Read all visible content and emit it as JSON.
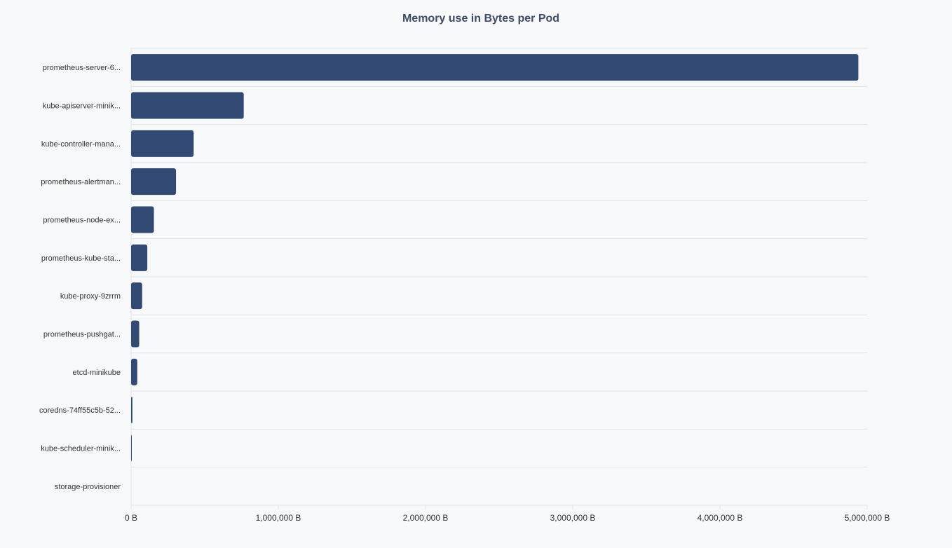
{
  "chart_data": {
    "type": "bar",
    "orientation": "horizontal",
    "title": "Memory use in Bytes per Pod",
    "xlabel": "",
    "ylabel": "",
    "categories": [
      "prometheus-server-6...",
      "kube-apiserver-minik...",
      "kube-controller-mana...",
      "prometheus-alertman...",
      "prometheus-node-ex...",
      "prometheus-kube-sta...",
      "kube-proxy-9zrrm",
      "prometheus-pushgat...",
      "etcd-minikube",
      "coredns-74ff55c5b-52...",
      "kube-scheduler-minik...",
      "storage-provisioner"
    ],
    "values": [
      4940000,
      765000,
      425000,
      305000,
      155000,
      110000,
      75000,
      55000,
      42000,
      9000,
      4000,
      0
    ],
    "xlim": [
      0,
      5000000
    ],
    "xticks": [
      0,
      1000000,
      2000000,
      3000000,
      4000000,
      5000000
    ],
    "xtick_labels": [
      "0 B",
      "1,000,000 B",
      "2,000,000 B",
      "3,000,000 B",
      "4,000,000 B",
      "5,000,000 B"
    ],
    "grid": true,
    "legend": "none",
    "bar_color": "#324a73"
  }
}
